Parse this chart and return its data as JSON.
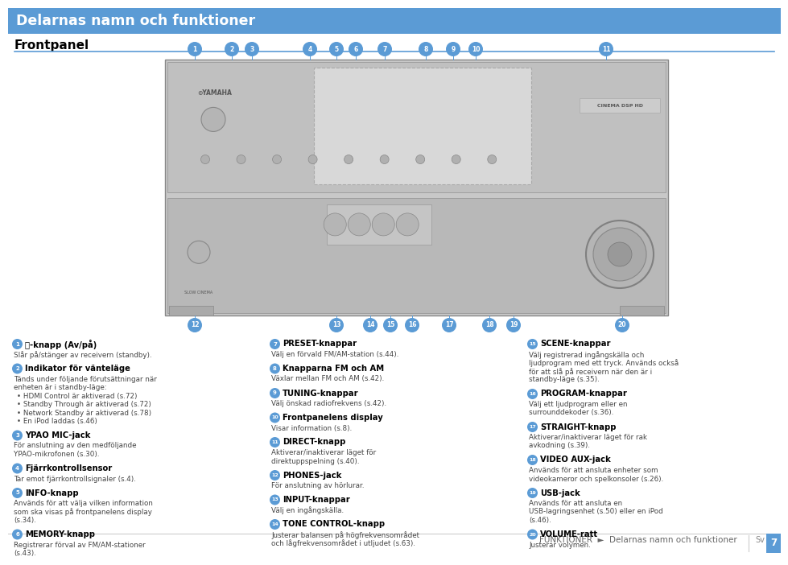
{
  "title": "Delarnas namn och funktioner",
  "subtitle": "Frontpanel",
  "header_bg_color": "#5b9bd5",
  "header_text_color": "#ffffff",
  "bg_color": "#f5f5f5",
  "subtitle_color": "#000000",
  "divider_color": "#5b9bd5",
  "number_color": "#5b9bd5",
  "body_text_color": "#444444",
  "footer_text": "FUNKTIONER  ►  Delarnas namn och funktioner",
  "col1_entries": [
    {
      "num": "1",
      "label": "⏻-knapp (Av/på)",
      "text": "Slår på/stänger av receivern (standby)."
    },
    {
      "num": "2",
      "label": "Indikator för vänteläge",
      "text": "Tänds under följande förutsättningar när enheten är i standby-läge:",
      "bullets": [
        "HDMI Control är aktiverad (s.72)",
        "Standby Through är aktiverad (s.72)",
        "Network Standby är aktiverad (s.78)",
        "En iPod laddas (s.46)"
      ]
    },
    {
      "num": "3",
      "label": "YPAO MIC-jack",
      "text": "För anslutning av den medföljande YPAO-mikrofonen (s.30)."
    },
    {
      "num": "4",
      "label": "Fjärrkontrollsensor",
      "text": "Tar emot fjärrkontrollsignaler (s.4)."
    },
    {
      "num": "5",
      "label": "INFO-knapp",
      "text": "Används för att välja vilken information som ska visas på frontpanelens display (s.34)."
    },
    {
      "num": "6",
      "label": "MEMORY-knapp",
      "text": "Registrerar förval av FM/AM-stationer (s.43)."
    }
  ],
  "col2_entries": [
    {
      "num": "7",
      "label": "PRESET-knappar",
      "text": "Välj en förvald FM/AM-station (s.44)."
    },
    {
      "num": "8",
      "label": "Knapparna FM och AM",
      "text": "Växlar mellan FM och AM (s.42)."
    },
    {
      "num": "9",
      "label": "TUNING-knappar",
      "text": "Välj önskad radiofrekvens (s.42)."
    },
    {
      "num": "10",
      "label": "Frontpanelens display",
      "text": "Visar information (s.8)."
    },
    {
      "num": "11",
      "label": "DIRECT-knapp",
      "text": "Aktiverar/inaktiverar läget för direktuppspelning (s.40)."
    },
    {
      "num": "12",
      "label": "PHONES-jack",
      "text": "För anslutning av hörlurar."
    },
    {
      "num": "13",
      "label": "INPUT-knappar",
      "text": "Välj en ingångskälla."
    },
    {
      "num": "14",
      "label": "TONE CONTROL-knapp",
      "text": "Justerar balansen på högfrekvensområdet och lågfrekvensområdet i utljudet (s.63)."
    }
  ],
  "col3_entries": [
    {
      "num": "15",
      "label": "SCENE-knappar",
      "text": "Välj registrerad ingångskälla och ljudprogram med ett tryck. Används också för att slå på receivern när den är i standby-läge (s.35)."
    },
    {
      "num": "16",
      "label": "PROGRAM-knappar",
      "text": "Välj ett ljudprogram eller en surrounddekoder (s.36)."
    },
    {
      "num": "17",
      "label": "STRAIGHT-knapp",
      "text": "Aktiverar/inaktiverar läget för rak avkodning (s.39)."
    },
    {
      "num": "18",
      "label": "VIDEO AUX-jack",
      "text": "Används för att ansluta enheter som videokameror och spelkonsoler (s.26)."
    },
    {
      "num": "19",
      "label": "USB-jack",
      "text": "Används för att ansluta en USB-lagringsenhet (s.50) eller en iPod (s.46)."
    },
    {
      "num": "20",
      "label": "VOLUME-ratt",
      "text": "Justerar volymen."
    }
  ],
  "num_above": {
    "1": 232,
    "2": 278,
    "3": 303,
    "4": 375,
    "5": 408,
    "6": 432,
    "7": 468,
    "8": 519,
    "9": 553,
    "10": 581,
    "11": 743
  },
  "num_below": {
    "12": 232,
    "13": 408,
    "14": 450,
    "15": 475,
    "16": 502,
    "17": 548,
    "18": 598,
    "19": 628,
    "20": 763
  }
}
